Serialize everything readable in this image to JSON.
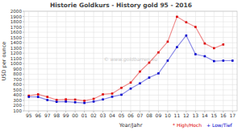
{
  "chart_data": {
    "type": "line",
    "title": "Historie Goldkurs - History gold 95 - 2016",
    "x_label": "Year/Jahr",
    "y_label": "USD per ounce",
    "annotations": [
      "© www.goldbarren.eu"
    ],
    "categories": [
      "95",
      "96",
      "97",
      "98",
      "99",
      "00",
      "01",
      "02",
      "03",
      "04",
      "05",
      "06",
      "07",
      "08",
      "09",
      "10",
      "11",
      "12",
      "13",
      "14",
      "15",
      "16",
      "17"
    ],
    "series": [
      {
        "name": "* High/Hoch",
        "color": "#dd0000",
        "marker": "square",
        "values": [
          390,
          415,
          367,
          310,
          320,
          315,
          293,
          330,
          415,
          430,
          540,
          640,
          850,
          1020,
          1215,
          1420,
          1895,
          1790,
          1700,
          1385,
          1296,
          1366,
          null
        ]
      },
      {
        "name": "+ Low/Tief",
        "color": "#0000cc",
        "marker": "square",
        "values": [
          368,
          367,
          308,
          273,
          278,
          264,
          252,
          278,
          319,
          370,
          408,
          525,
          625,
          735,
          815,
          1058,
          1315,
          1537,
          1180,
          1142,
          1049,
          1058,
          1058
        ]
      }
    ],
    "ylim": [
      100,
      2000
    ],
    "yticks": [
      100,
      200,
      300,
      400,
      500,
      600,
      700,
      800,
      900,
      1000,
      1100,
      1200,
      1300,
      1400,
      1500,
      1600,
      1700,
      1800,
      1900,
      2000
    ],
    "grid": true,
    "legend": "lower right"
  }
}
